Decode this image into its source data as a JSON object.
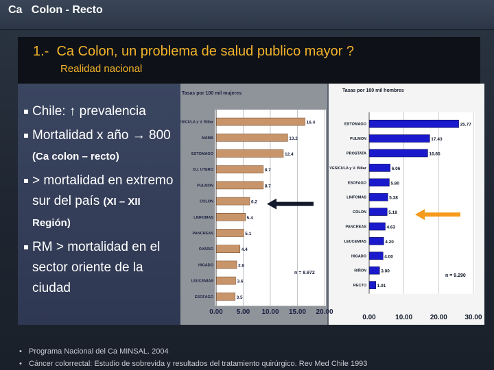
{
  "header": {
    "title": "Ca   Colon - Recto"
  },
  "title_box": {
    "main_title": "1.-  Ca Colon, un problema de salud publico mayor ?",
    "sub_title": "Realidad nacional"
  },
  "bullets": [
    {
      "text": "Chile:  ↑  prevalencia",
      "small": ""
    },
    {
      "text": "Mortalidad x año → 800 ",
      "small": "(Ca colon – recto)"
    },
    {
      "text": "> mortalidad en extremo sur  del país ",
      "small": "(XI – XII Región)"
    },
    {
      "text": "RM > mortalidad en el sector oriente de la ciudad",
      "small": ""
    }
  ],
  "footnotes": [
    "Programa Nacional del Ca MINSAL.  2004",
    "Cáncer colorrectal: Estudio de sobrevida y resultados del tratamiento quirúrgico.  Rev Med Chile 1993"
  ],
  "colors": {
    "women_bar": "#c8956b",
    "men_bar": "#1a1acc",
    "black_arrow": "#141a2c",
    "orange_arrow": "#f59a1c"
  },
  "chart_data": [
    {
      "type": "bar",
      "orientation": "horizontal",
      "title": "Tasas por 100 mil mujeres",
      "categories": [
        "VESICULA y V. Biliar",
        "MAMA",
        "ESTOMAGO",
        "CU. UTERO",
        "PULMON",
        "COLON",
        "LINFOMAS",
        "PANCREAS",
        "OVARIO",
        "HIGADO",
        "LEUCEMIAS",
        "ESOFAGO"
      ],
      "values": [
        16.4,
        13.2,
        12.4,
        8.7,
        8.7,
        6.2,
        5.4,
        5.1,
        4.4,
        3.8,
        3.6,
        3.5
      ],
      "value_labels": [
        "16.4",
        "13.2",
        "12.4",
        "8.7",
        "8.7",
        "6.2",
        "5.4",
        "5.1",
        "4.4",
        "3.8",
        "3.6",
        "3.5"
      ],
      "xlim": [
        0,
        20
      ],
      "xticks": [
        "0.00",
        "5.00",
        "10.00",
        "15.00",
        "20.00"
      ],
      "annotation": "n = 8.972",
      "highlight": "COLON",
      "arrow_color": "black"
    },
    {
      "type": "bar",
      "orientation": "horizontal",
      "title": "Tasas por 100 mil hombres",
      "categories": [
        "ESTOMAGO",
        "PULMON",
        "PROSTATA",
        "VESICULA y V. Biliar",
        "ESOFAGO",
        "LINFOMAS",
        "COLON",
        "PANCREAS",
        "LEUCEMIAS",
        "HIGADO",
        "RIÑON",
        "RECTO"
      ],
      "values": [
        25.77,
        17.43,
        16.85,
        6.06,
        5.8,
        5.38,
        5.18,
        4.63,
        4.2,
        4.0,
        3.0,
        1.91
      ],
      "value_labels": [
        "25.77",
        "17.43",
        "16.85",
        "6.06",
        "5.80",
        "5.38",
        "5.18",
        "4.63",
        "4.20",
        "4.00",
        "3.00",
        "1.91"
      ],
      "xlim": [
        0,
        30
      ],
      "xticks": [
        "0.00",
        "10.00",
        "20.00",
        "30.00"
      ],
      "annotation": "n = 9.290",
      "highlight": "COLON",
      "arrow_color": "orange"
    }
  ]
}
